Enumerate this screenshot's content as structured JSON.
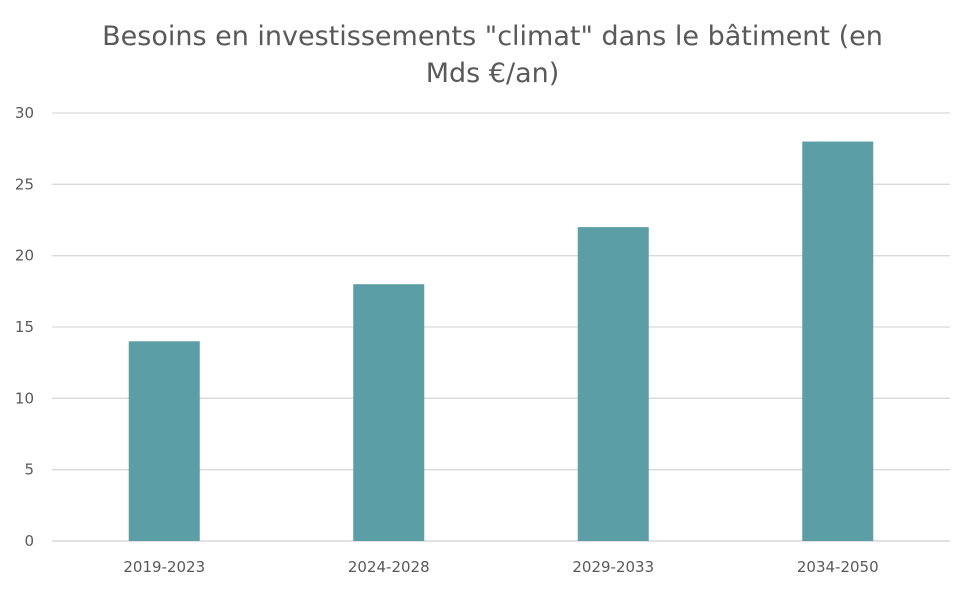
{
  "chart_data": {
    "type": "bar",
    "title": "Besoins en investissements \"climat\" dans le bâtiment (en Mds €/an)",
    "xlabel": "",
    "ylabel": "",
    "categories": [
      "2019-2023",
      "2024-2028",
      "2029-2033",
      "2034-2050"
    ],
    "values": [
      14,
      18,
      22,
      28
    ],
    "ylim": [
      0,
      30
    ],
    "yticks": [
      0,
      5,
      10,
      15,
      20,
      25,
      30
    ],
    "grid": true,
    "legend": "none",
    "bar_color": "#5b9ea6"
  }
}
